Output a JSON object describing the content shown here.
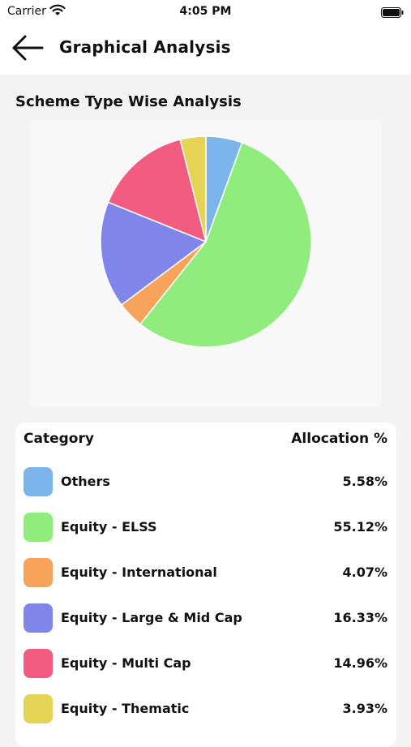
{
  "status": {
    "carrier": "Carrier",
    "time": "4:05 PM"
  },
  "header": {
    "title": "Graphical Analysis"
  },
  "section": {
    "title": "Scheme Type Wise Analysis"
  },
  "legend": {
    "category_header": "Category",
    "allocation_header": "Allocation %"
  },
  "chart_data": {
    "type": "pie",
    "title": "",
    "slices": [
      {
        "label": "Others",
        "value": 5.58,
        "display": "5.58%",
        "color": "#7cb5ec"
      },
      {
        "label": "Equity - ELSS",
        "value": 55.12,
        "display": "55.12%",
        "color": "#90ed7d"
      },
      {
        "label": "Equity - International",
        "value": 4.07,
        "display": "4.07%",
        "color": "#f7a35c"
      },
      {
        "label": "Equity - Large & Mid Cap",
        "value": 16.33,
        "display": "16.33%",
        "color": "#8085e9"
      },
      {
        "label": "Equity - Multi Cap",
        "value": 14.96,
        "display": "14.96%",
        "color": "#f15c80"
      },
      {
        "label": "Equity - Thematic",
        "value": 3.93,
        "display": "3.93%",
        "color": "#e4d354"
      }
    ]
  }
}
